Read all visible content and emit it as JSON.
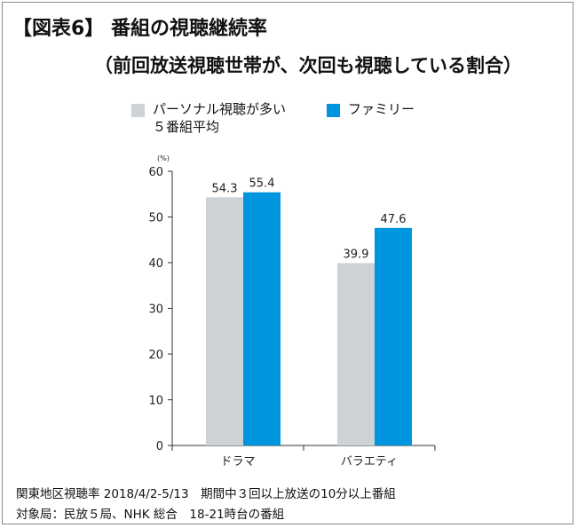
{
  "figure": {
    "title": "【図表6】 番組の視聴継続率",
    "subtitle": "（前回放送視聴世帯が、次回も視聴している割合）"
  },
  "legend": [
    {
      "line1": "パーソナル視聴が多い",
      "line2": "５番組平均",
      "color": "#cdd2d6"
    },
    {
      "line1": "ファミリー",
      "line2": "",
      "color": "#0095df"
    }
  ],
  "chart_data": {
    "type": "bar",
    "title": "番組の視聴継続率",
    "categories": [
      "ドラマ",
      "バラエティ"
    ],
    "series": [
      {
        "name": "パーソナル視聴が多い５番組平均",
        "values": [
          54.3,
          39.9
        ],
        "color": "#cdd2d6"
      },
      {
        "name": "ファミリー",
        "values": [
          55.4,
          47.6
        ],
        "color": "#0095df"
      }
    ],
    "unit_label": "(%)",
    "ylim": [
      0,
      60
    ],
    "yticks": [
      0,
      10,
      20,
      30,
      40,
      50,
      60
    ],
    "xlabel": "",
    "ylabel": "",
    "grid": false
  },
  "footnotes": [
    "関東地区視聴率 2018/4/2-5/13　期間中３回以上放送の10分以上番組",
    "対象局：民放５局、NHK 総合　18-21時台の番組"
  ]
}
